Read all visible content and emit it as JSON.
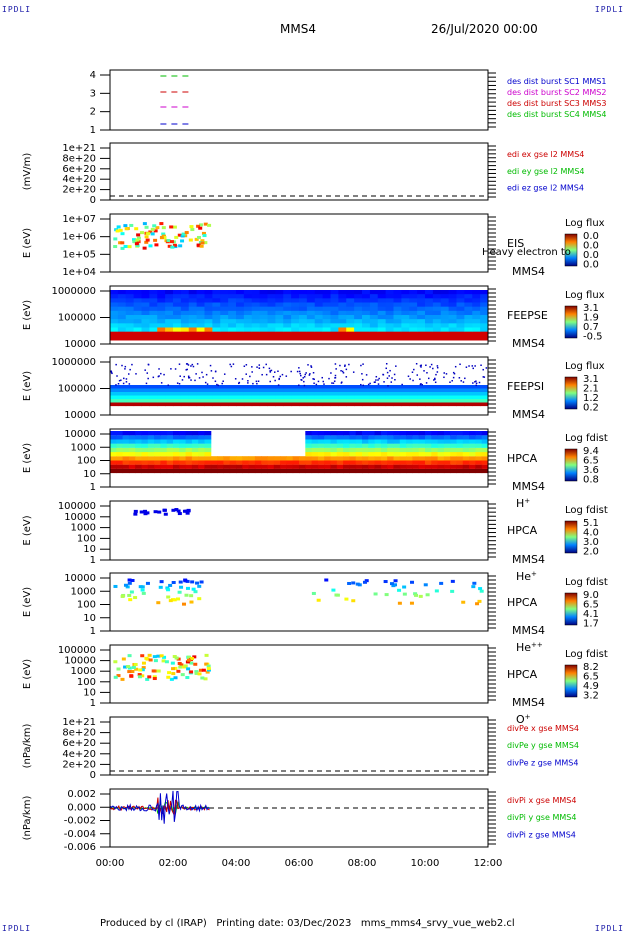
{
  "corners": {
    "tl": "IPDLI",
    "tr": "IPDLI",
    "bl": "IPDLI",
    "br": "IPDLI"
  },
  "header": {
    "title": "MMS4",
    "date": "26/Jul/2020 00:00"
  },
  "footer": {
    "text": "Produced by cl (IRAP)   Printing date: 03/Dec/2023   mms_mms4_srvy_vue_web2.cl"
  },
  "chart_data": {
    "type": "heatmap",
    "x_ticks": [
      "00:00",
      "02:00",
      "04:00",
      "06:00",
      "08:00",
      "10:00",
      "12:00"
    ],
    "x_range_hours": [
      0,
      12
    ],
    "panels": [
      {
        "id": "burst",
        "ylabel": "",
        "yticks": [
          "4",
          "3",
          "2",
          "1"
        ],
        "legend": [
          {
            "text": "des dist burst SC1 MMS1",
            "color": "#0000cc"
          },
          {
            "text": "des dist burst SC2 MMS2",
            "color": "#cc00cc"
          },
          {
            "text": "des dist burst SC3 MMS3",
            "color": "#cc0000"
          },
          {
            "text": "des dist burst SC4 MMS4",
            "color": "#00bb00"
          }
        ]
      },
      {
        "id": "edi",
        "ylabel": "(mV/m)",
        "yticks": [
          "1e+21",
          "8e+20",
          "6e+20",
          "4e+20",
          "2e+20",
          "0"
        ],
        "legend": [
          {
            "text": "edi ex gse l2 MMS4",
            "color": "#cc0000"
          },
          {
            "text": "edi ey gse l2 MMS4",
            "color": "#00bb00"
          },
          {
            "text": "edi ez gse l2 MMS4",
            "color": "#0000cc"
          }
        ]
      },
      {
        "id": "eis",
        "ylabel": "E (eV)",
        "yticks": [
          "1e+07",
          "1e+06",
          "1e+05",
          "1e+04"
        ],
        "inst": [
          "EIS",
          "MMS4"
        ],
        "note": "Heavy electron to",
        "cbar_title": "Log flux",
        "cbar_ticks": [
          "0.0",
          "0.0",
          "0.0",
          "0.0"
        ]
      },
      {
        "id": "feepse",
        "ylabel": "E (eV)",
        "yticks": [
          "1000000",
          "100000",
          "10000"
        ],
        "inst": [
          "FEEPSE",
          "MMS4"
        ],
        "cbar_title": "Log flux",
        "cbar_ticks": [
          "3.1",
          "1.9",
          "0.7",
          "-0.5"
        ]
      },
      {
        "id": "feepsi",
        "ylabel": "E (eV)",
        "yticks": [
          "1000000",
          "100000",
          "10000"
        ],
        "inst": [
          "FEEPSI",
          "MMS4"
        ],
        "cbar_title": "Log flux",
        "cbar_ticks": [
          "3.1",
          "2.1",
          "1.2",
          "0.2"
        ]
      },
      {
        "id": "hpca_h",
        "ylabel": "E (eV)",
        "yticks": [
          "10000",
          "1000",
          "100",
          "10",
          "1"
        ],
        "inst": [
          "HPCA",
          "MMS4"
        ],
        "species": "H",
        "sup": "+",
        "cbar_title": "Log fdist",
        "cbar_ticks": [
          "9.4",
          "6.5",
          "3.6",
          "0.8"
        ]
      },
      {
        "id": "hpca_he",
        "ylabel": "E (eV)",
        "yticks": [
          "100000",
          "10000",
          "1000",
          "100",
          "10",
          "1"
        ],
        "inst": [
          "HPCA",
          "MMS4"
        ],
        "species": "He",
        "sup": "+",
        "cbar_title": "Log fdist",
        "cbar_ticks": [
          "5.1",
          "4.0",
          "3.0",
          "2.0"
        ]
      },
      {
        "id": "hpca_hepp",
        "ylabel": "E (eV)",
        "yticks": [
          "10000",
          "1000",
          "100",
          "10",
          "1"
        ],
        "inst": [
          "HPCA",
          "MMS4"
        ],
        "species": "He",
        "sup": "++",
        "cbar_title": "Log fdist",
        "cbar_ticks": [
          "9.0",
          "6.5",
          "4.1",
          "1.7"
        ]
      },
      {
        "id": "hpca_o",
        "ylabel": "E (eV)",
        "yticks": [
          "100000",
          "10000",
          "1000",
          "100",
          "10",
          "1"
        ],
        "inst": [
          "HPCA",
          "MMS4"
        ],
        "species": "O",
        "sup": "+",
        "cbar_title": "Log fdist",
        "cbar_ticks": [
          "8.2",
          "6.5",
          "4.9",
          "3.2"
        ]
      },
      {
        "id": "divpe",
        "ylabel": "(nPa/km)",
        "yticks": [
          "1e+21",
          "8e+20",
          "6e+20",
          "4e+20",
          "2e+20",
          "0"
        ],
        "legend": [
          {
            "text": "divPe x gse MMS4",
            "color": "#cc0000"
          },
          {
            "text": "divPe y gse MMS4",
            "color": "#00bb00"
          },
          {
            "text": "divPe z gse MMS4",
            "color": "#0000cc"
          }
        ]
      },
      {
        "id": "divpi",
        "ylabel": "(nPa/km)",
        "yticks": [
          "0.002",
          "0.000",
          "-0.002",
          "-0.004",
          "-0.006"
        ],
        "legend": [
          {
            "text": "divPi x gse MMS4",
            "color": "#cc0000"
          },
          {
            "text": "divPi y gse MMS4",
            "color": "#00bb00"
          },
          {
            "text": "divPi z gse MMS4",
            "color": "#0000cc"
          }
        ]
      }
    ]
  }
}
